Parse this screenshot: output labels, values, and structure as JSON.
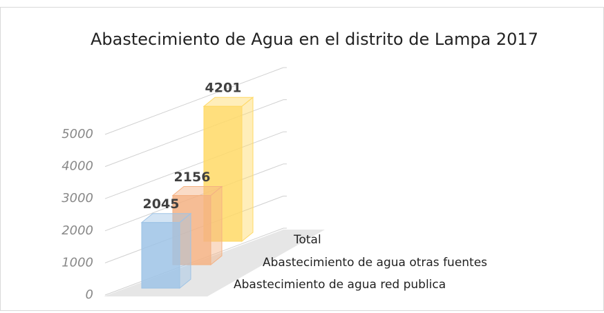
{
  "chart_data": {
    "type": "bar3d",
    "title": "Abastecimiento de Agua en el distrito de Lampa 2017",
    "categories": [
      "Abastecimiento de agua red publica",
      "Abastecimiento de agua otras fuentes",
      "Total"
    ],
    "values": [
      2045,
      2156,
      4201
    ],
    "colors": [
      "#9dc3e6",
      "#f4b183",
      "#ffd966"
    ],
    "ylim": [
      0,
      5000
    ],
    "yticks": [
      0,
      1000,
      2000,
      3000,
      4000,
      5000
    ],
    "grid": true
  }
}
